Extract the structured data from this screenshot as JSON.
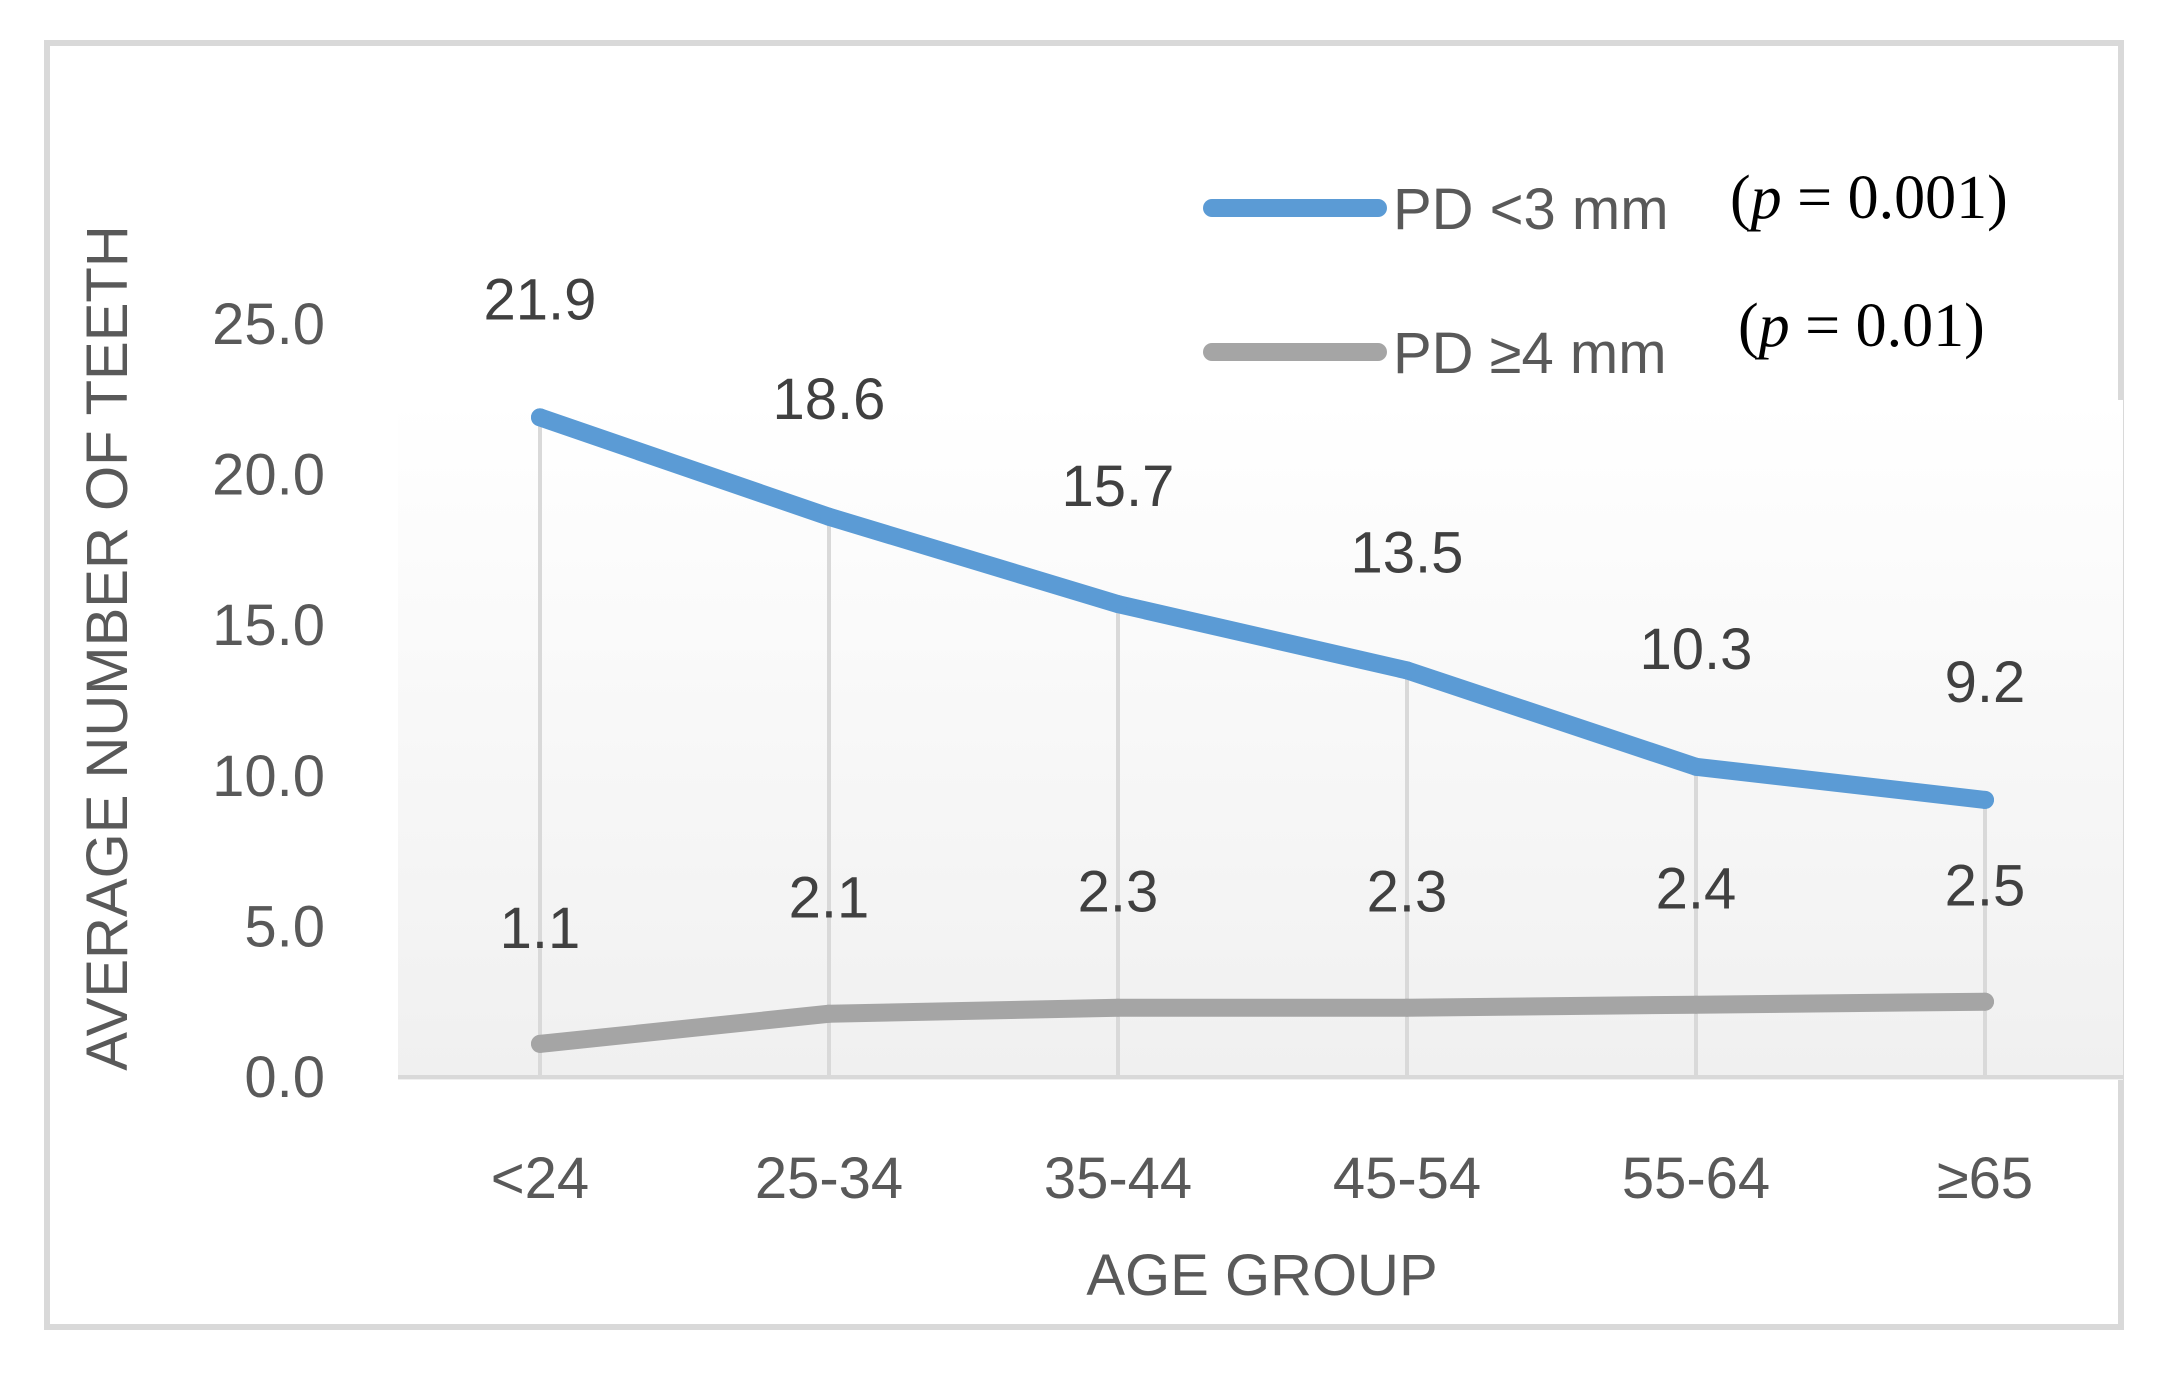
{
  "chart_data": {
    "type": "line",
    "categories": [
      "<24",
      "25-34",
      "35-44",
      "45-54",
      "55-64",
      "≥65"
    ],
    "series": [
      {
        "name": "PD <3 mm",
        "values": [
          21.9,
          18.6,
          15.7,
          13.5,
          10.3,
          9.2
        ],
        "labels": [
          "21.9",
          "18.6",
          "15.7",
          "13.5",
          "10.3",
          "9.2"
        ],
        "color": "#5b9bd5",
        "p_value": {
          "prefix": "(",
          "p": "p",
          "equals": " = 0.001",
          "suffix": ")"
        }
      },
      {
        "name": "PD ≥4 mm",
        "values": [
          1.1,
          2.1,
          2.3,
          2.3,
          2.4,
          2.5
        ],
        "labels": [
          "1.1",
          "2.1",
          "2.3",
          "2.3",
          "2.4",
          "2.5"
        ],
        "color": "#a5a5a5",
        "p_value": {
          "prefix": "(",
          "p": "p",
          "equals": " = 0.01",
          "suffix": ")"
        }
      }
    ],
    "xlabel": "AGE GROUP",
    "ylabel": "AVERAGE NUMBER OF TEETH",
    "ylim": [
      0,
      25
    ],
    "yticks": [
      "0.0",
      "5.0",
      "10.0",
      "15.0",
      "20.0",
      "25.0"
    ],
    "ytick_values": [
      0,
      5,
      10,
      15,
      20,
      25
    ],
    "grid": "vertical drop lines",
    "legend": "top-right",
    "colors": {
      "frame": "#d9d9d9",
      "axis": "#d9d9d9",
      "dropline": "#d9d9d9",
      "text": "#595959"
    }
  }
}
